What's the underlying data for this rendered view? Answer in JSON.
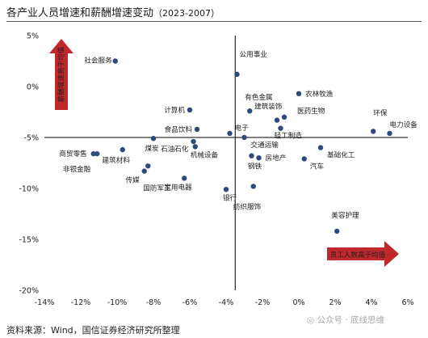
{
  "title": "各产业人员增速和薪酬增速变动",
  "title_years": "（2023-2007）",
  "source": "资料来源：Wind，国信证券经济研究所整理",
  "watermark": "公众号 · 底线思维",
  "colors": {
    "point": "#2e4a7d",
    "arrow": "#c0282b",
    "axis": "#000000"
  },
  "chart_data": {
    "type": "scatter",
    "title": "各产业人员增速和薪酬增速变动（2023-2007）",
    "xlim": [
      -14,
      6
    ],
    "ylim": [
      -20,
      5
    ],
    "x_ticks": [
      -14,
      -12,
      -10,
      -8,
      -6,
      -4,
      -2,
      0,
      2,
      4,
      6
    ],
    "x_tick_labels": [
      "-14%",
      "-12%",
      "-10%",
      "-8%",
      "-6%",
      "-4%",
      "-2%",
      "0%",
      "2%",
      "4%",
      "6%"
    ],
    "y_ticks": [
      5,
      0,
      -5,
      -10,
      -15,
      -20
    ],
    "y_tick_labels": [
      "5%",
      "0%",
      "-5%",
      "-10%",
      "-15%",
      "-20%"
    ],
    "cross_at": {
      "x": -3.5,
      "y": -5
    },
    "grid": false,
    "annotations": [
      {
        "text": "员工人数高于均值",
        "direction": "right"
      },
      {
        "text": "薪酬增速高于均值",
        "direction": "up"
      }
    ],
    "points": [
      {
        "name": "社会服务",
        "x": -10.1,
        "y": 2.5
      },
      {
        "name": "公用事业",
        "x": -3.4,
        "y": 1.2
      },
      {
        "name": "有色金属",
        "x": -2.7,
        "y": -2.4
      },
      {
        "name": "农林牧渔",
        "x": 0,
        "y": -0.7
      },
      {
        "name": "建筑装饰",
        "x": -1.2,
        "y": -3.3
      },
      {
        "name": "医药生物",
        "x": -0.8,
        "y": -3.0
      },
      {
        "name": "计算机",
        "x": -6.0,
        "y": -2.3
      },
      {
        "name": "环保",
        "x": 4.1,
        "y": -4.4
      },
      {
        "name": "电力设备",
        "x": 5.0,
        "y": -4.6
      },
      {
        "name": "食品饮料",
        "x": -5.6,
        "y": -4.2
      },
      {
        "name": "电子",
        "x": -3.8,
        "y": -4.6
      },
      {
        "name": "轻工制造",
        "x": -1.0,
        "y": -4.1
      },
      {
        "name": "交通运输",
        "x": -3.0,
        "y": -5.0
      },
      {
        "name": "煤炭",
        "x": -8.0,
        "y": -5.1
      },
      {
        "name": "石油石化",
        "x": -5.8,
        "y": -5.4
      },
      {
        "name": "机械设备",
        "x": -5.7,
        "y": -5.9
      },
      {
        "name": "基础化工",
        "x": 1.2,
        "y": -6.0
      },
      {
        "name": "商贸零售",
        "x": -11.3,
        "y": -6.6
      },
      {
        "name": "非银金融",
        "x": -11.1,
        "y": -6.6
      },
      {
        "name": "建筑材料",
        "x": -9.7,
        "y": -6.2
      },
      {
        "name": "房地产",
        "x": -2.2,
        "y": -7.0
      },
      {
        "name": "钢铁",
        "x": -2.6,
        "y": -6.8
      },
      {
        "name": "汽车",
        "x": 0.3,
        "y": -7.1
      },
      {
        "name": "传媒",
        "x": -8.5,
        "y": -8.3
      },
      {
        "name": "国防军工",
        "x": -8.3,
        "y": -7.8
      },
      {
        "name": "家用电器",
        "x": -6.3,
        "y": -9.0
      },
      {
        "name": "银行",
        "x": -4.0,
        "y": -10.1
      },
      {
        "name": "纺织服饰",
        "x": -2.5,
        "y": -9.8
      },
      {
        "name": "美容护理",
        "x": 2.1,
        "y": -14.2
      }
    ]
  }
}
